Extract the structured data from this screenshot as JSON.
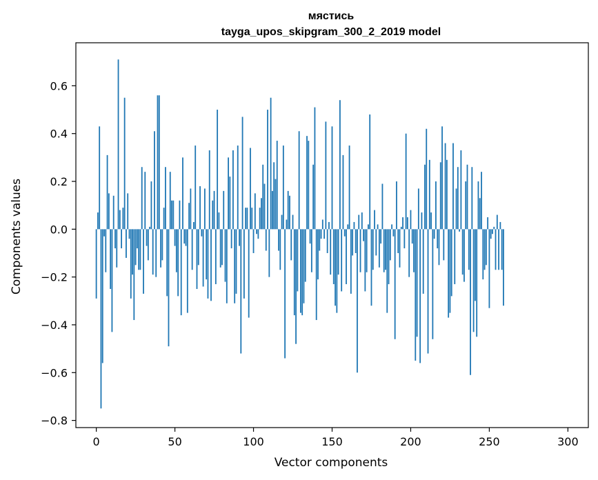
{
  "chart_data": {
    "type": "bar",
    "title": "мястись",
    "subtitle": "tayga_upos_skipgram_300_2_2019 model",
    "xlabel": "Vector components",
    "ylabel": "Components values",
    "xlim": [
      -13,
      313
    ],
    "ylim": [
      -0.83,
      0.78
    ],
    "xticks": [
      0,
      50,
      100,
      150,
      200,
      250,
      300
    ],
    "yticks": [
      -0.8,
      -0.6,
      -0.4,
      -0.2,
      0.0,
      0.2,
      0.4,
      0.6
    ],
    "ytick_labels": [
      "−0.8",
      "−0.6",
      "−0.4",
      "−0.2",
      "0.0",
      "0.2",
      "0.4",
      "0.6"
    ],
    "xtick_labels": [
      "0",
      "50",
      "100",
      "150",
      "200",
      "250",
      "300"
    ],
    "grid": false,
    "bar_color": "#1f77b4",
    "values": [
      -0.29,
      0.07,
      0.43,
      -0.75,
      -0.56,
      -0.03,
      -0.18,
      0.31,
      0.15,
      -0.25,
      -0.43,
      0.14,
      -0.08,
      -0.16,
      0.71,
      0.08,
      -0.08,
      0.09,
      0.55,
      -0.12,
      0.15,
      -0.04,
      -0.29,
      -0.19,
      -0.38,
      -0.15,
      -0.08,
      -0.17,
      -0.17,
      0.26,
      -0.27,
      0.24,
      -0.07,
      -0.13,
      0.01,
      0.2,
      -0.19,
      0.41,
      -0.2,
      0.56,
      0.56,
      -0.16,
      -0.13,
      0.09,
      0.26,
      -0.28,
      -0.49,
      0.24,
      0.12,
      0.12,
      -0.07,
      -0.18,
      -0.28,
      0.12,
      -0.36,
      0.3,
      -0.06,
      -0.07,
      -0.35,
      0.11,
      0.17,
      -0.17,
      0.03,
      0.35,
      -0.25,
      -0.15,
      0.18,
      -0.03,
      -0.24,
      0.17,
      -0.21,
      -0.29,
      0.33,
      -0.3,
      0.12,
      0.16,
      -0.23,
      0.5,
      0.07,
      -0.16,
      -0.15,
      0.16,
      -0.22,
      -0.31,
      0.3,
      0.22,
      -0.08,
      0.33,
      -0.31,
      -0.27,
      0.35,
      -0.07,
      -0.52,
      0.47,
      -0.29,
      0.09,
      0.09,
      -0.37,
      0.34,
      0.09,
      -0.1,
      0.15,
      -0.02,
      -0.04,
      0.09,
      0.13,
      0.27,
      0.19,
      -0.09,
      0.5,
      -0.2,
      0.55,
      0.16,
      0.28,
      0.21,
      0.37,
      -0.09,
      -0.17,
      0.06,
      0.35,
      -0.54,
      0.04,
      0.16,
      0.14,
      -0.13,
      0.06,
      -0.36,
      -0.48,
      -0.26,
      0.41,
      -0.35,
      -0.36,
      -0.31,
      -0.22,
      0.39,
      0.37,
      -0.06,
      -0.18,
      0.27,
      0.51,
      -0.38,
      -0.21,
      -0.09,
      -0.04,
      0.04,
      -0.04,
      0.45,
      -0.1,
      0.03,
      -0.19,
      0.43,
      -0.23,
      -0.32,
      -0.35,
      -0.19,
      0.54,
      -0.26,
      0.31,
      -0.03,
      -0.23,
      0.02,
      0.35,
      -0.27,
      -0.11,
      0.03,
      -0.1,
      -0.6,
      0.06,
      -0.18,
      0.07,
      -0.05,
      -0.26,
      -0.18,
      0.02,
      0.48,
      -0.32,
      -0.17,
      0.08,
      -0.11,
      0.02,
      -0.16,
      -0.06,
      0.19,
      -0.18,
      -0.17,
      -0.35,
      -0.23,
      -0.13,
      0.02,
      -0.03,
      -0.46,
      0.2,
      -0.1,
      -0.16,
      0.01,
      0.05,
      -0.08,
      0.4,
      0.05,
      -0.2,
      0.08,
      -0.06,
      -0.18,
      -0.55,
      -0.45,
      0.17,
      -0.56,
      0.07,
      -0.27,
      0.27,
      0.42,
      -0.52,
      0.29,
      0.07,
      -0.46,
      -0.04,
      0.2,
      -0.08,
      -0.15,
      0.28,
      0.43,
      -0.13,
      0.36,
      0.29,
      -0.37,
      -0.35,
      -0.28,
      0.36,
      -0.23,
      0.17,
      0.26,
      -0.01,
      0.33,
      -0.19,
      -0.22,
      0.2,
      0.27,
      -0.17,
      -0.61,
      0.26,
      -0.43,
      -0.3,
      -0.45,
      0.2,
      0.13,
      0.24,
      -0.21,
      -0.17,
      -0.15,
      0.05,
      -0.33,
      -0.04,
      -0.02,
      0.01,
      -0.17,
      0.06,
      -0.17,
      0.03,
      -0.17,
      -0.32
    ]
  }
}
